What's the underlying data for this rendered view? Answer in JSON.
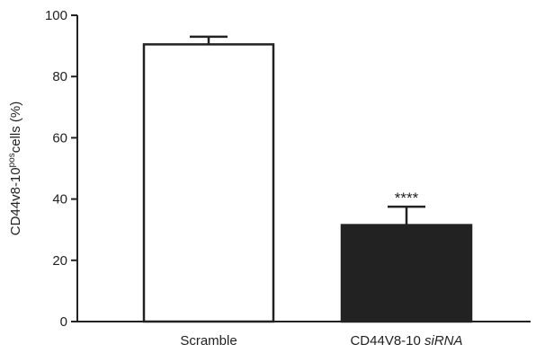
{
  "chart_data": {
    "type": "bar",
    "categories": [
      "Scramble",
      "CD44V8-10 siRNA"
    ],
    "category_labels": [
      {
        "main": "Scramble",
        "italic": ""
      },
      {
        "main": "CD44V8-10 ",
        "italic": "siRNA"
      }
    ],
    "values": [
      90.5,
      31.5
    ],
    "errors": [
      2.5,
      6.0
    ],
    "bar_colors": [
      "#ffffff",
      "#222222"
    ],
    "annotations": [
      "",
      "****"
    ],
    "ylabel_parts": {
      "before": "CD44v8-10",
      "sup": "pos",
      "after": "cells (%)"
    },
    "ylim": [
      0,
      100
    ],
    "yticks": [
      0,
      20,
      40,
      60,
      80,
      100
    ],
    "xlabel": "",
    "title": ""
  }
}
